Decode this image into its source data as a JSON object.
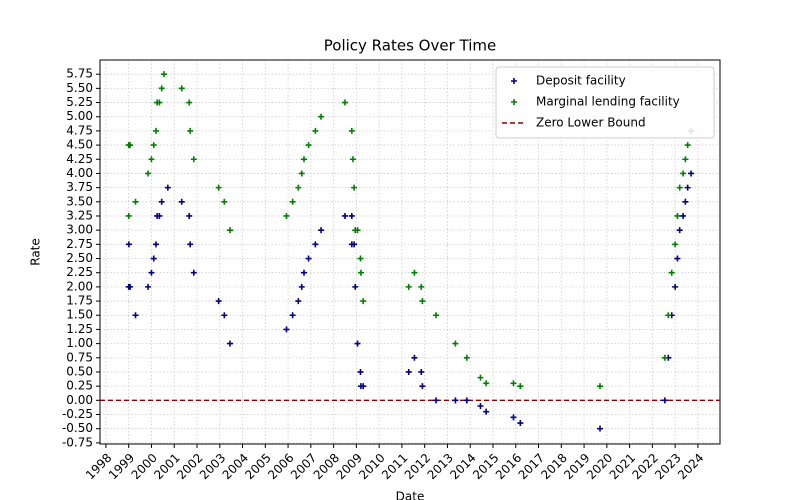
{
  "chart_data": {
    "type": "scatter",
    "title": "Policy Rates Over Time",
    "x_label": "Date",
    "y_label": "Rate",
    "xlim": [
      1997.74,
      2024.97
    ],
    "xticks": [
      1998,
      1999,
      2000,
      2001,
      2002,
      2003,
      2004,
      2005,
      2006,
      2007,
      2008,
      2009,
      2010,
      2011,
      2012,
      2013,
      2014,
      2015,
      2016,
      2017,
      2018,
      2019,
      2020,
      2021,
      2022,
      2023,
      2024
    ],
    "ylim": [
      -0.77,
      6.0
    ],
    "yticks": [
      -0.75,
      {
        "value": -0.5,
        "label": "-0.50"
      },
      -0.25,
      {
        "value": 0,
        "label": "0.00"
      },
      0.25,
      {
        "value": 0.5,
        "label": "0.50"
      },
      0.75,
      {
        "value": 1,
        "label": "1.00"
      },
      1.25,
      {
        "value": 1.5,
        "label": "1.50"
      },
      1.75,
      {
        "value": 2,
        "label": "2.00"
      },
      2.25,
      {
        "value": 2.5,
        "label": "2.50"
      },
      2.75,
      {
        "value": 3,
        "label": "3.00"
      },
      3.25,
      {
        "value": 3.5,
        "label": "3.50"
      },
      3.75,
      {
        "value": 4,
        "label": "4.00"
      },
      4.25,
      {
        "value": 4.5,
        "label": "4.50"
      },
      4.75,
      {
        "value": 5,
        "label": "5.00"
      },
      5.25,
      {
        "value": 5.5,
        "label": "5.50"
      },
      5.75
    ],
    "grid": true,
    "legend": "upper right",
    "series": [
      {
        "name": "Deposit facility",
        "color": "#000080",
        "x": [
          1999.0,
          1999.01,
          1999.06,
          1999.3,
          1999.85,
          2000.0,
          2000.1,
          2000.2,
          2000.25,
          2000.35,
          2000.45,
          2000.72,
          2001.33,
          2001.66,
          2001.7,
          2001.86,
          2002.95,
          2003.2,
          2003.45,
          2005.93,
          2006.2,
          2006.45,
          2006.6,
          2006.7,
          2006.9,
          2007.2,
          2007.45,
          2008.5,
          2008.8,
          2008.8,
          2008.9,
          2008.95,
          2009.05,
          2009.18,
          2009.2,
          2009.3,
          2011.3,
          2011.55,
          2011.85,
          2011.9,
          2012.5,
          2013.35,
          2013.85,
          2014.45,
          2014.7,
          2015.9,
          2016.2,
          2019.7,
          2022.55,
          2022.7,
          2022.85,
          2023.0,
          2023.1,
          2023.2,
          2023.35,
          2023.45,
          2023.55,
          2023.7
        ],
        "values": [
          2.0,
          2.75,
          2.0,
          1.5,
          2.0,
          2.25,
          2.5,
          2.75,
          3.25,
          3.25,
          3.5,
          3.75,
          3.5,
          3.25,
          2.75,
          2.25,
          1.75,
          1.5,
          1.0,
          1.25,
          1.5,
          1.75,
          2.0,
          2.25,
          2.5,
          2.75,
          3.0,
          3.25,
          3.25,
          2.75,
          2.75,
          2.0,
          1.0,
          0.5,
          0.25,
          0.25,
          0.5,
          0.75,
          0.5,
          0.25,
          0.0,
          0.0,
          0.0,
          -0.1,
          -0.2,
          -0.3,
          -0.4,
          -0.5,
          0.0,
          0.75,
          1.5,
          2.0,
          2.5,
          3.0,
          3.25,
          3.5,
          3.75,
          4.0
        ]
      },
      {
        "name": "Marginal lending facility",
        "color": "#008000",
        "x": [
          1999.0,
          1999.0,
          1999.06,
          1999.3,
          1999.85,
          2000.0,
          2000.1,
          2000.2,
          2000.25,
          2000.35,
          2000.45,
          2000.55,
          2001.33,
          2001.66,
          2001.7,
          2001.86,
          2002.95,
          2003.2,
          2003.45,
          2005.93,
          2006.2,
          2006.45,
          2006.6,
          2006.7,
          2006.9,
          2007.2,
          2007.45,
          2008.5,
          2008.8,
          2008.85,
          2008.9,
          2008.95,
          2009.05,
          2009.18,
          2009.2,
          2009.3,
          2011.3,
          2011.55,
          2011.85,
          2011.9,
          2012.5,
          2013.35,
          2013.85,
          2014.45,
          2014.7,
          2015.9,
          2016.2,
          2019.7,
          2022.55,
          2022.7,
          2022.85,
          2023.0,
          2023.1,
          2023.2,
          2023.35,
          2023.45,
          2023.55,
          2023.7
        ],
        "values": [
          4.5,
          3.25,
          4.5,
          3.5,
          4.0,
          4.25,
          4.5,
          4.75,
          5.25,
          5.25,
          5.5,
          5.75,
          5.5,
          5.25,
          4.75,
          4.25,
          3.75,
          3.5,
          3.0,
          3.25,
          3.5,
          3.75,
          4.0,
          4.25,
          4.5,
          4.75,
          5.0,
          5.25,
          4.75,
          4.25,
          3.75,
          3.0,
          3.0,
          2.5,
          2.25,
          1.75,
          2.0,
          2.25,
          2.0,
          1.75,
          1.5,
          1.0,
          0.75,
          0.4,
          0.3,
          0.3,
          0.25,
          0.25,
          0.75,
          1.5,
          2.25,
          2.75,
          3.25,
          3.75,
          4.0,
          4.25,
          4.5,
          4.75
        ]
      }
    ],
    "hlines": [
      {
        "name": "Zero Lower Bound",
        "y": 0,
        "color": "#8b0000"
      }
    ]
  }
}
